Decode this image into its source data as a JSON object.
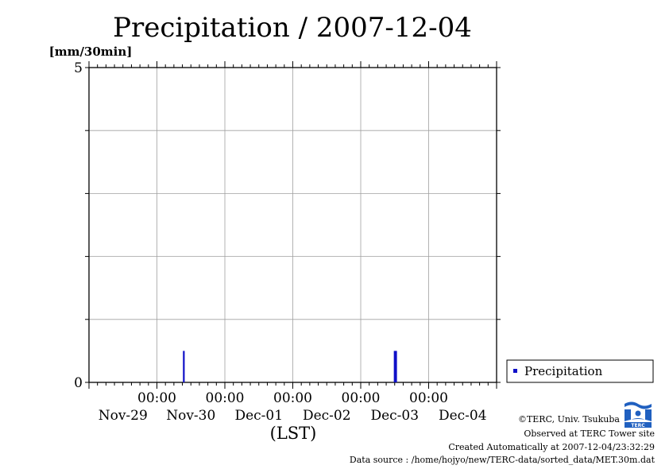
{
  "chart_data": {
    "type": "bar",
    "title": "Precipitation / 2007-12-04",
    "ylabel": "[mm/30min]",
    "xlabel": "(LST)",
    "ylim": [
      0,
      5
    ],
    "y_ticks": [
      "0",
      "5"
    ],
    "x_ticks": [
      {
        "time": "00:00",
        "date": "Nov-29"
      },
      {
        "time": "00:00",
        "date": "Nov-30"
      },
      {
        "time": "00:00",
        "date": "Dec-01"
      },
      {
        "time": "00:00",
        "date": "Dec-02"
      },
      {
        "time": "00:00",
        "date": "Dec-03"
      },
      {
        "time": "00:00",
        "date": "Dec-04"
      }
    ],
    "x_start": "2007-11-29 00:00",
    "x_end": "2007-12-05 00:00",
    "grid": true,
    "legend_position": "right",
    "series": [
      {
        "name": "Precipitation",
        "color": "#1010c8",
        "points": [
          {
            "x": "2007-11-30 09:30",
            "y": 0.5
          },
          {
            "x": "2007-12-03 12:00",
            "y": 0.5
          },
          {
            "x": "2007-12-03 12:30",
            "y": 0.5
          }
        ]
      }
    ]
  },
  "footer": {
    "copyright": "©TERC, Univ. Tsukuba",
    "observed": "Observed at TERC Tower site",
    "created": "Created Automatically at 2007-12-04/23:32:29",
    "source": "Data source : /home/hojyo/new/TERC-data/sorted_data/MET.30m.dat"
  },
  "logo": {
    "text": "TERC",
    "color": "#2060c0"
  }
}
